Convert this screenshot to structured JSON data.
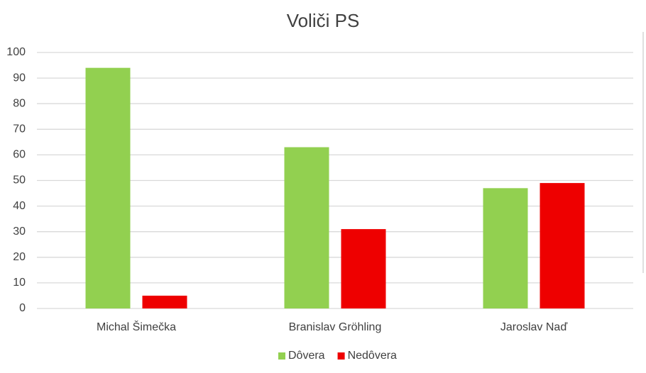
{
  "chart_data": {
    "type": "bar",
    "title": "Voliči PS",
    "categories": [
      "Michal Šimečka",
      "Branislav Gröhling",
      "Jaroslav Naď"
    ],
    "series": [
      {
        "name": "Dôvera",
        "color": "#92d050",
        "values": [
          94,
          63,
          47
        ]
      },
      {
        "name": "Nedôvera",
        "color": "#ee0000",
        "values": [
          5,
          31,
          49
        ]
      }
    ],
    "ylim": [
      0,
      100
    ],
    "yticks": [
      0,
      10,
      20,
      30,
      40,
      50,
      60,
      70,
      80,
      90,
      100
    ],
    "grid": true,
    "legend": "bottom"
  }
}
